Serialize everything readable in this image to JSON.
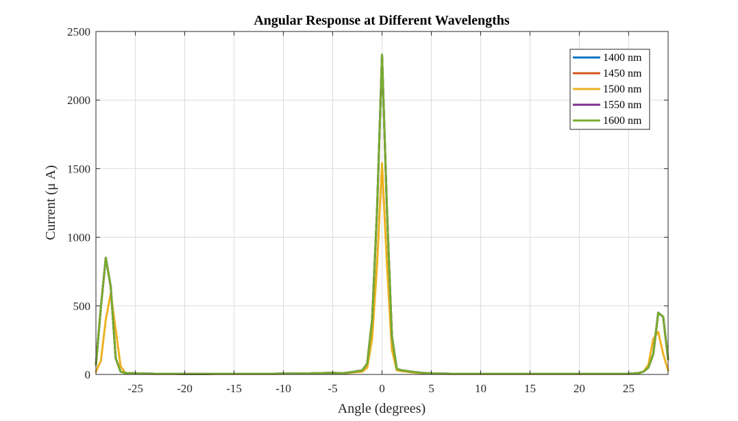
{
  "chart_data": {
    "type": "line",
    "title": "Angular Response at Different Wavelengths",
    "xlabel": "Angle (degrees)",
    "ylabel": "Current (μ A)",
    "xlim": [
      -29,
      29
    ],
    "ylim": [
      0,
      2500
    ],
    "xticks": [
      -25,
      -20,
      -15,
      -10,
      -5,
      0,
      5,
      10,
      15,
      20,
      25
    ],
    "yticks": [
      0,
      500,
      1000,
      1500,
      2000,
      2500
    ],
    "grid": true,
    "legend_position": "top-right",
    "x": [
      -29,
      -28.5,
      -28,
      -27.5,
      -27,
      -26.5,
      -26,
      -25,
      -24,
      -23,
      -22,
      -21,
      -20,
      -19,
      -18,
      -17,
      -16,
      -15,
      -14,
      -13,
      -12,
      -11,
      -10,
      -9,
      -8,
      -7,
      -6,
      -5,
      -4,
      -3,
      -2,
      -1.5,
      -1,
      -0.5,
      0,
      0.5,
      1,
      1.5,
      2,
      3,
      4,
      5,
      6,
      7,
      8,
      9,
      10,
      11,
      12,
      13,
      14,
      15,
      16,
      17,
      18,
      19,
      20,
      21,
      22,
      23,
      24,
      25,
      26,
      26.5,
      27,
      27.5,
      28,
      28.5,
      29
    ],
    "series": [
      {
        "name": "1400 nm",
        "color": "#0072BD",
        "values": [
          70,
          490,
          850,
          640,
          120,
          20,
          10,
          8,
          6,
          5,
          5,
          5,
          4,
          4,
          4,
          5,
          5,
          5,
          5,
          5,
          5,
          5,
          6,
          6,
          7,
          8,
          10,
          12,
          8,
          18,
          30,
          80,
          400,
          1200,
          2330,
          1200,
          280,
          40,
          30,
          20,
          12,
          8,
          6,
          5,
          5,
          5,
          5,
          5,
          5,
          5,
          5,
          5,
          5,
          5,
          5,
          5,
          5,
          5,
          5,
          5,
          5,
          5,
          10,
          20,
          50,
          150,
          450,
          420,
          110
        ]
      },
      {
        "name": "1450 nm",
        "color": "#D95319",
        "values": [
          70,
          490,
          850,
          640,
          120,
          20,
          10,
          8,
          6,
          5,
          5,
          5,
          4,
          4,
          4,
          5,
          5,
          5,
          5,
          5,
          5,
          5,
          6,
          6,
          7,
          8,
          10,
          12,
          8,
          18,
          30,
          80,
          400,
          1200,
          2330,
          1200,
          280,
          40,
          30,
          20,
          12,
          8,
          6,
          5,
          5,
          5,
          5,
          5,
          5,
          5,
          5,
          5,
          5,
          5,
          5,
          5,
          5,
          5,
          5,
          5,
          5,
          5,
          10,
          20,
          50,
          150,
          450,
          420,
          110
        ]
      },
      {
        "name": "1500 nm",
        "color": "#EDB120",
        "values": [
          20,
          100,
          400,
          590,
          330,
          60,
          10,
          6,
          5,
          4,
          4,
          4,
          3,
          3,
          3,
          4,
          4,
          4,
          4,
          4,
          4,
          4,
          5,
          5,
          6,
          7,
          8,
          10,
          6,
          14,
          20,
          50,
          260,
          800,
          1540,
          800,
          180,
          30,
          25,
          15,
          10,
          6,
          5,
          4,
          4,
          4,
          4,
          4,
          4,
          4,
          4,
          4,
          4,
          4,
          4,
          4,
          4,
          4,
          4,
          4,
          4,
          4,
          8,
          20,
          70,
          260,
          310,
          150,
          30
        ]
      },
      {
        "name": "1550 nm",
        "color": "#7E2F8E",
        "values": [
          70,
          490,
          850,
          640,
          120,
          20,
          10,
          8,
          6,
          5,
          5,
          5,
          4,
          4,
          4,
          5,
          5,
          5,
          5,
          5,
          5,
          5,
          6,
          6,
          7,
          8,
          10,
          12,
          8,
          18,
          30,
          80,
          400,
          1200,
          2330,
          1200,
          280,
          40,
          30,
          20,
          12,
          8,
          6,
          5,
          5,
          5,
          5,
          5,
          5,
          5,
          5,
          5,
          5,
          5,
          5,
          5,
          5,
          5,
          5,
          5,
          5,
          5,
          10,
          20,
          50,
          150,
          450,
          420,
          110
        ]
      },
      {
        "name": "1600 nm",
        "color": "#77AC30",
        "values": [
          70,
          490,
          850,
          640,
          120,
          20,
          10,
          8,
          6,
          5,
          5,
          5,
          4,
          4,
          4,
          5,
          5,
          5,
          5,
          5,
          5,
          5,
          6,
          6,
          7,
          8,
          10,
          12,
          8,
          18,
          30,
          80,
          400,
          1200,
          2330,
          1200,
          280,
          40,
          30,
          20,
          12,
          8,
          6,
          5,
          5,
          5,
          5,
          5,
          5,
          5,
          5,
          5,
          5,
          5,
          5,
          5,
          5,
          5,
          5,
          5,
          5,
          5,
          10,
          20,
          50,
          150,
          450,
          420,
          110
        ]
      }
    ]
  }
}
